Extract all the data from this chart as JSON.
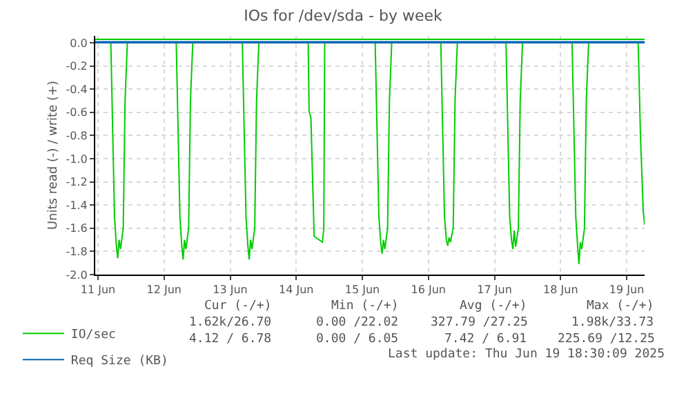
{
  "chart_data": {
    "type": "line",
    "title": "IOs for /dev/sda - by week",
    "ylabel": "Units read (-) / write (+)",
    "xlim": [
      "2025-06-11T11:00",
      "2025-06-19T18:30"
    ],
    "xticks": [
      {
        "value": "2025-06-11T12:00",
        "label": "11 Jun"
      },
      {
        "value": "2025-06-12T12:00",
        "label": "12 Jun"
      },
      {
        "value": "2025-06-13T12:00",
        "label": "13 Jun"
      },
      {
        "value": "2025-06-14T12:00",
        "label": "14 Jun"
      },
      {
        "value": "2025-06-15T12:00",
        "label": "15 Jun"
      },
      {
        "value": "2025-06-16T12:00",
        "label": "16 Jun"
      },
      {
        "value": "2025-06-17T12:00",
        "label": "17 Jun"
      },
      {
        "value": "2025-06-18T12:00",
        "label": "18 Jun"
      },
      {
        "value": "2025-06-19T12:00",
        "label": "19 Jun"
      }
    ],
    "ylim": [
      -2.0,
      0.06
    ],
    "yticks": [
      {
        "value": 0,
        "label": "0.0"
      },
      -0.2,
      -0.4,
      -0.6,
      -0.8,
      {
        "value": -1.0,
        "label": "-1.0"
      },
      -1.2,
      -1.4,
      -1.6,
      -1.8,
      {
        "value": -2.0,
        "label": "-2.0"
      }
    ],
    "grid": true,
    "legend": "bottom",
    "line_style": "solid",
    "series": [
      {
        "name": "IO/sec",
        "color": "#00cc00",
        "x": [
          "2025-06-11T11:00",
          "2025-06-11T16:40",
          "2025-06-11T18:00",
          "2025-06-11T18:40",
          "2025-06-11T19:10",
          "2025-06-11T19:40",
          "2025-06-11T20:10",
          "2025-06-11T21:10",
          "2025-06-11T21:50",
          "2025-06-11T22:40",
          "2025-06-12T16:25",
          "2025-06-12T17:45",
          "2025-06-12T18:25",
          "2025-06-12T18:55",
          "2025-06-12T19:25",
          "2025-06-12T19:55",
          "2025-06-12T20:55",
          "2025-06-12T21:35",
          "2025-06-12T22:25",
          "2025-06-13T16:25",
          "2025-06-13T17:45",
          "2025-06-13T18:25",
          "2025-06-13T18:55",
          "2025-06-13T19:25",
          "2025-06-13T19:55",
          "2025-06-13T20:55",
          "2025-06-13T21:35",
          "2025-06-13T22:25",
          "2025-06-14T16:20",
          "2025-06-14T16:40",
          "2025-06-14T17:20",
          "2025-06-14T18:30",
          "2025-06-14T21:30",
          "2025-06-14T22:00",
          "2025-06-14T22:20",
          "2025-06-15T16:40",
          "2025-06-15T18:00",
          "2025-06-15T18:40",
          "2025-06-15T19:10",
          "2025-06-15T19:40",
          "2025-06-15T20:10",
          "2025-06-15T21:10",
          "2025-06-15T21:50",
          "2025-06-15T22:40",
          "2025-06-16T16:30",
          "2025-06-16T17:50",
          "2025-06-16T18:30",
          "2025-06-16T19:00",
          "2025-06-16T19:30",
          "2025-06-16T20:00",
          "2025-06-16T21:00",
          "2025-06-16T21:40",
          "2025-06-16T22:30",
          "2025-06-17T16:10",
          "2025-06-17T17:30",
          "2025-06-17T18:10",
          "2025-06-17T18:40",
          "2025-06-17T19:10",
          "2025-06-17T19:40",
          "2025-06-17T20:40",
          "2025-06-17T21:20",
          "2025-06-17T22:10",
          "2025-06-18T16:10",
          "2025-06-18T17:30",
          "2025-06-18T18:10",
          "2025-06-18T18:40",
          "2025-06-18T19:10",
          "2025-06-18T19:40",
          "2025-06-18T20:40",
          "2025-06-18T21:20",
          "2025-06-18T22:10",
          "2025-06-19T16:10",
          "2025-06-19T17:00",
          "2025-06-19T18:00",
          "2025-06-19T18:30"
        ],
        "values": [
          0,
          0,
          -1.5,
          -1.75,
          -1.86,
          -1.7,
          -1.78,
          -1.6,
          -0.5,
          0,
          0,
          -1.5,
          -1.75,
          -1.87,
          -1.7,
          -1.78,
          -1.6,
          -0.5,
          0,
          0,
          -1.5,
          -1.75,
          -1.87,
          -1.7,
          -1.78,
          -1.6,
          -0.5,
          0,
          0,
          -0.59,
          -0.65,
          -1.67,
          -1.72,
          -1.6,
          0,
          0,
          -1.5,
          -1.72,
          -1.82,
          -1.7,
          -1.78,
          -1.6,
          -0.5,
          0,
          0,
          -1.5,
          -1.7,
          -1.75,
          -1.68,
          -1.72,
          -1.6,
          -0.5,
          0,
          0,
          -1.5,
          -1.7,
          -1.78,
          -1.62,
          -1.76,
          -1.6,
          -0.5,
          0,
          0,
          -1.5,
          -1.75,
          -1.91,
          -1.72,
          -1.78,
          -1.6,
          -0.5,
          0,
          0,
          -0.8,
          -1.45,
          -1.57
        ]
      },
      {
        "color": "#00cc00",
        "x": [
          "2025-06-11T11:00",
          "2025-06-19T18:30"
        ],
        "values": [
          0.03,
          0.03
        ]
      },
      {
        "name": "Req Size (KB)",
        "color": "#0066b3",
        "x": [
          "2025-06-11T11:00",
          "2025-06-19T18:30"
        ],
        "values": [
          0.0,
          0.0
        ]
      },
      {
        "color": "#0066b3",
        "x": [
          "2025-06-11T11:00",
          "2025-06-19T18:30"
        ],
        "values": [
          0.01,
          0.01
        ]
      }
    ],
    "annotations": [
      "Cur (-/+)",
      "Min (-/+)",
      "Avg (-/+)",
      "Max (-/+)",
      "1.62k/26.70",
      "0.00 /22.02",
      "327.79 /27.25",
      "1.98k/33.73",
      "4.12 / 6.78",
      "0.00 / 6.05",
      "7.42 / 6.91",
      "225.69 /12.25",
      "Last update: Thu Jun 19 18:30:09 2025"
    ]
  }
}
